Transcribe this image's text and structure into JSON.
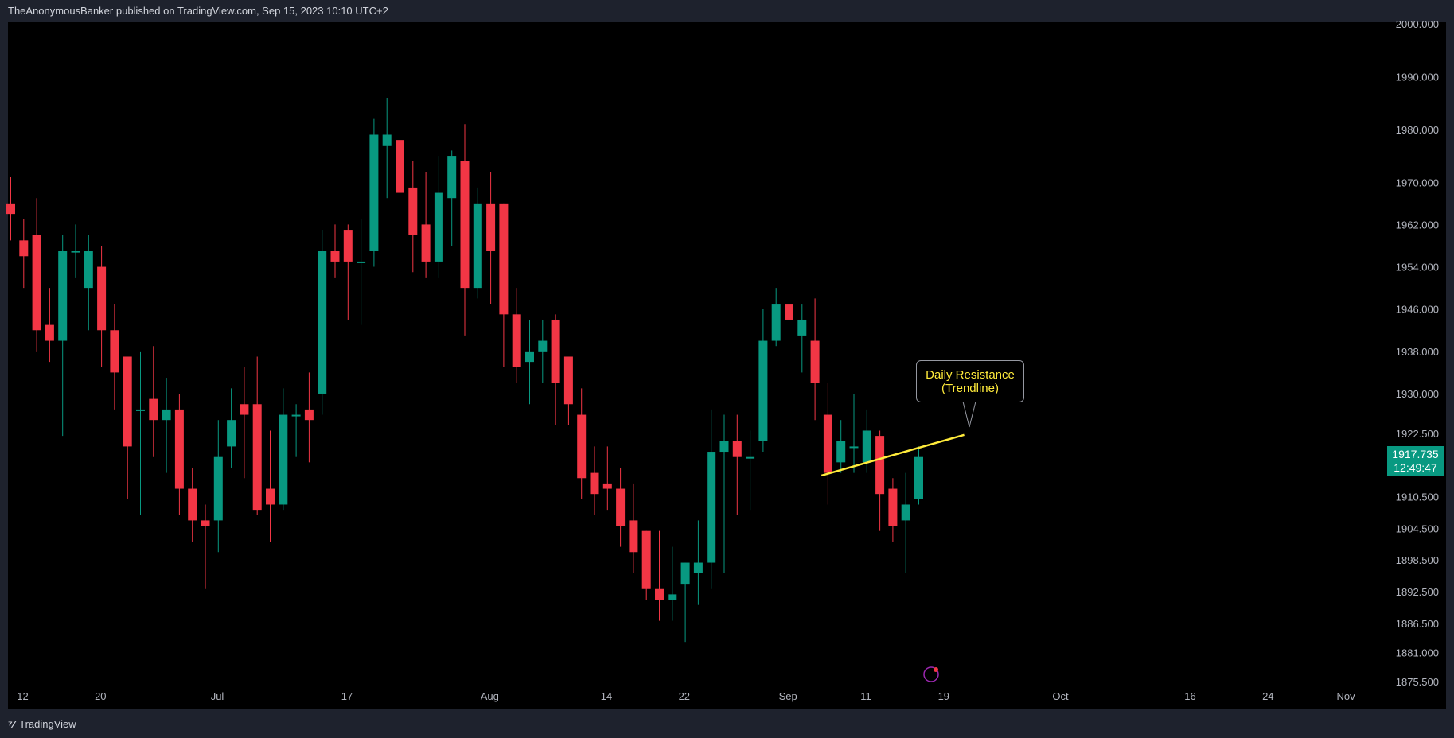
{
  "header": {
    "text": "TheAnonymousBanker published on TradingView.com, Sep 15, 2023 10:10 UTC+2"
  },
  "footer": {
    "brand": "TradingView"
  },
  "colors": {
    "up": "#089981",
    "down": "#f23645",
    "trendline": "#ffeb3b",
    "background": "#000000",
    "axis_text": "#b2b5be"
  },
  "chart_data": {
    "type": "candlestick",
    "title": "",
    "ylim": [
      1875.5,
      2000
    ],
    "y_ticks": [
      "2000.000",
      "1990.000",
      "1980.000",
      "1970.000",
      "1962.000",
      "1954.000",
      "1946.000",
      "1938.000",
      "1930.000",
      "1922.500",
      "1910.500",
      "1904.500",
      "1898.500",
      "1892.500",
      "1886.500",
      "1881.000",
      "1875.500"
    ],
    "x_ticks": [
      {
        "label": "12",
        "index": 0
      },
      {
        "label": "20",
        "index": 6
      },
      {
        "label": "Jul",
        "index": 15
      },
      {
        "label": "17",
        "index": 25
      },
      {
        "label": "Aug",
        "index": 36
      },
      {
        "label": "14",
        "index": 45
      },
      {
        "label": "22",
        "index": 51
      },
      {
        "label": "Sep",
        "index": 59
      },
      {
        "label": "11",
        "index": 65
      },
      {
        "label": "19",
        "index": 71
      },
      {
        "label": "Oct",
        "index": 80
      },
      {
        "label": "16",
        "index": 90
      },
      {
        "label": "24",
        "index": 96
      },
      {
        "label": "Nov",
        "index": 102
      }
    ],
    "candles": [
      [
        1966,
        1964,
        1971,
        1959
      ],
      [
        1959,
        1956,
        1963,
        1950
      ],
      [
        1960,
        1942,
        1967,
        1938
      ],
      [
        1943,
        1940,
        1950,
        1936
      ],
      [
        1940,
        1957,
        1960,
        1922
      ],
      [
        1957,
        1957,
        1962,
        1952
      ],
      [
        1950,
        1957,
        1960,
        1942
      ],
      [
        1954,
        1942,
        1958,
        1935
      ],
      [
        1942,
        1934,
        1947,
        1927
      ],
      [
        1937,
        1920,
        1935,
        1910
      ],
      [
        1927,
        1927,
        1938,
        1907
      ],
      [
        1929,
        1925,
        1939,
        1918
      ],
      [
        1925,
        1927,
        1933,
        1915
      ],
      [
        1927,
        1912,
        1930,
        1907
      ],
      [
        1912,
        1906,
        1916,
        1902
      ],
      [
        1906,
        1905,
        1909,
        1893
      ],
      [
        1906,
        1918,
        1925,
        1900
      ],
      [
        1920,
        1925,
        1931,
        1916
      ],
      [
        1928,
        1926,
        1935,
        1914
      ],
      [
        1928,
        1908,
        1937,
        1907
      ],
      [
        1912,
        1909,
        1923,
        1902
      ],
      [
        1909,
        1926,
        1931,
        1908
      ],
      [
        1926,
        1926,
        1928,
        1918
      ],
      [
        1927,
        1925,
        1934,
        1917
      ],
      [
        1930,
        1957,
        1961,
        1926
      ],
      [
        1957,
        1955,
        1962,
        1952
      ],
      [
        1961,
        1955,
        1962,
        1944
      ],
      [
        1955,
        1955,
        1963,
        1943
      ],
      [
        1957,
        1979,
        1982,
        1954
      ],
      [
        1977,
        1979,
        1986,
        1967
      ],
      [
        1978,
        1968,
        1988,
        1965
      ],
      [
        1969,
        1960,
        1974,
        1953
      ],
      [
        1962,
        1955,
        1972,
        1952
      ],
      [
        1955,
        1968,
        1975,
        1952
      ],
      [
        1967,
        1975,
        1976,
        1958
      ],
      [
        1974,
        1950,
        1981,
        1941
      ],
      [
        1950,
        1966,
        1969,
        1948
      ],
      [
        1966,
        1957,
        1972,
        1947
      ],
      [
        1966,
        1945,
        1966,
        1935
      ],
      [
        1945,
        1935,
        1950,
        1932
      ],
      [
        1936,
        1938,
        1944,
        1928
      ],
      [
        1938,
        1940,
        1944,
        1932
      ],
      [
        1944,
        1932,
        1945,
        1924
      ],
      [
        1937,
        1928,
        1937,
        1924
      ],
      [
        1926,
        1914,
        1931,
        1910
      ],
      [
        1915,
        1911,
        1920,
        1907
      ],
      [
        1913,
        1912,
        1920,
        1908
      ],
      [
        1912,
        1905,
        1916,
        1901
      ],
      [
        1906,
        1900,
        1913,
        1896
      ],
      [
        1904,
        1893,
        1904,
        1891
      ],
      [
        1893,
        1891,
        1904,
        1887
      ],
      [
        1891,
        1892,
        1901,
        1887
      ],
      [
        1894,
        1898,
        1898,
        1883
      ],
      [
        1896,
        1898,
        1906,
        1890
      ],
      [
        1898,
        1919,
        1927,
        1893
      ],
      [
        1919,
        1921,
        1926,
        1896
      ],
      [
        1921,
        1918,
        1926,
        1907
      ],
      [
        1918,
        1918,
        1923,
        1908
      ],
      [
        1921,
        1940,
        1946,
        1919
      ],
      [
        1940,
        1947,
        1950,
        1939
      ],
      [
        1947,
        1944,
        1952,
        1940
      ],
      [
        1941,
        1944,
        1947,
        1934
      ],
      [
        1940,
        1932,
        1948,
        1925
      ],
      [
        1926,
        1915,
        1932,
        1909
      ],
      [
        1917,
        1921,
        1925,
        1915
      ],
      [
        1920,
        1920,
        1930,
        1915
      ],
      [
        1917,
        1923,
        1927,
        1915
      ],
      [
        1922,
        1911,
        1923,
        1904
      ],
      [
        1912,
        1905,
        1914,
        1902
      ],
      [
        1906,
        1909,
        1915,
        1896
      ],
      [
        1910,
        1918,
        1920,
        1909
      ]
    ],
    "trendline": {
      "label": "Daily Resistance\n(Trendline)",
      "from": {
        "index": 62.5,
        "price": 1914.5
      },
      "to": {
        "index": 73.5,
        "price": 1922.2
      }
    },
    "annotation": {
      "line1": "Daily Resistance",
      "line2": "(Trendline)"
    },
    "last_price": {
      "value": "1917.735",
      "countdown": "12:49:47"
    }
  }
}
